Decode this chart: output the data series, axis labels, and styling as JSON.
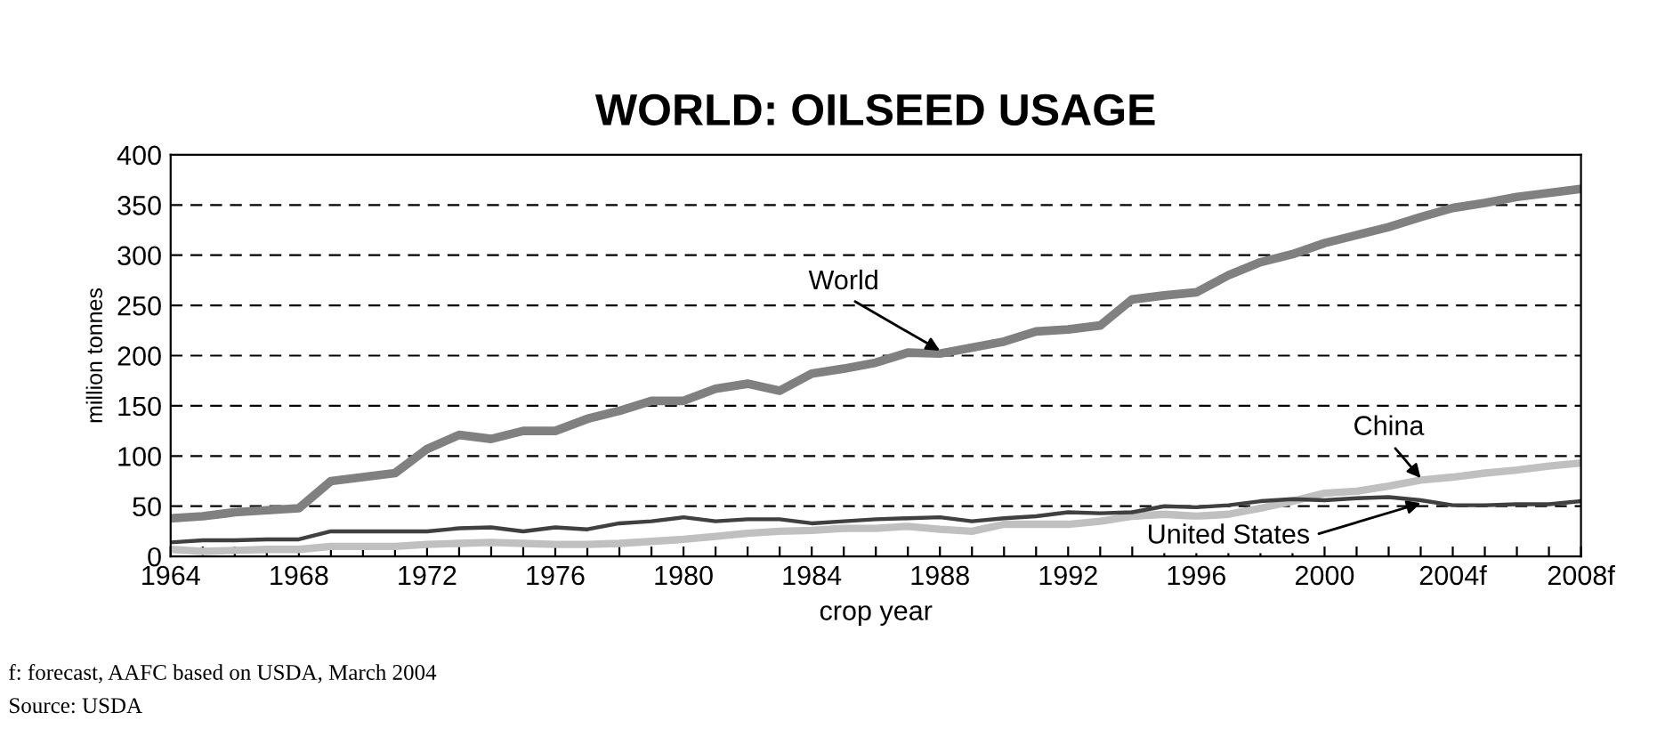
{
  "chart_data": {
    "type": "line",
    "title": "WORLD: OILSEED USAGE",
    "xlabel": "crop year",
    "ylabel": "million tonnes",
    "categories": [
      "1964",
      null,
      null,
      null,
      "1968",
      null,
      null,
      null,
      "1972",
      null,
      null,
      null,
      "1976",
      null,
      null,
      null,
      "1980",
      null,
      null,
      null,
      "1984",
      null,
      null,
      null,
      "1988",
      null,
      null,
      null,
      "1992",
      null,
      null,
      null,
      "1996",
      null,
      null,
      null,
      "2000",
      null,
      null,
      null,
      "2004f",
      null,
      null,
      null,
      "2008f"
    ],
    "series": [
      {
        "name": "World",
        "color": "#808080",
        "values": [
          38,
          40,
          44,
          46,
          48,
          75,
          79,
          83,
          107,
          121,
          117,
          125,
          125,
          137,
          145,
          155,
          155,
          167,
          172,
          165,
          182,
          187,
          193,
          203,
          202,
          208,
          214,
          224,
          226,
          230,
          256,
          260,
          263,
          280,
          293,
          301,
          312,
          320,
          328,
          338,
          347,
          352,
          358,
          362,
          366
        ]
      },
      {
        "name": "China",
        "color": "#c0c0c0",
        "values": [
          7,
          5,
          6,
          7,
          7,
          10,
          10,
          10,
          12,
          13,
          14,
          13,
          12,
          12,
          13,
          15,
          17,
          20,
          23,
          25,
          26,
          28,
          28,
          30,
          27,
          25,
          32,
          32,
          32,
          35,
          40,
          42,
          40,
          42,
          48,
          55,
          63,
          65,
          70,
          76,
          79,
          83,
          86,
          90,
          93
        ]
      },
      {
        "name": "United States",
        "color": "#404040",
        "values": [
          14,
          16,
          16,
          17,
          17,
          25,
          25,
          25,
          25,
          28,
          29,
          25,
          29,
          27,
          33,
          35,
          39,
          35,
          37,
          37,
          33,
          35,
          37,
          38,
          39,
          35,
          38,
          40,
          44,
          43,
          44,
          50,
          49,
          51,
          55,
          57,
          56,
          58,
          59,
          56,
          51,
          51,
          52,
          52,
          55
        ]
      }
    ],
    "ylim": [
      0,
      400
    ],
    "yticks": [
      0,
      50,
      100,
      150,
      200,
      250,
      300,
      350,
      400
    ],
    "grid": "y",
    "legend": false,
    "marker": "none",
    "line_style": "solid",
    "annotations": [
      "f: forecast, AAFC based on USDA, March 2004",
      "Source: USDA"
    ]
  }
}
